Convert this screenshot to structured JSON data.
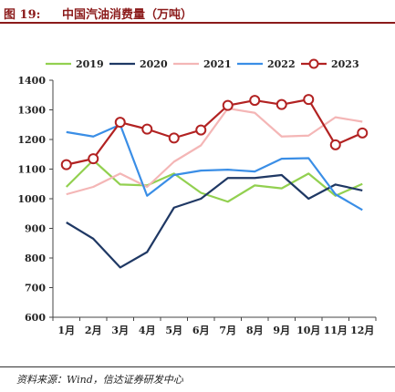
{
  "header": {
    "figure_label": "图 19:",
    "title": "中国汽油消费量（万吨）"
  },
  "source": {
    "text": "资料来源：Wind，信达证券研发中心"
  },
  "chart_data": {
    "type": "line",
    "title": "",
    "xlabel": "",
    "ylabel": "",
    "categories": [
      "1月",
      "2月",
      "3月",
      "4月",
      "5月",
      "6月",
      "7月",
      "8月",
      "9月",
      "10月",
      "11月",
      "12月"
    ],
    "ylim": [
      600,
      1400
    ],
    "yticks": [
      600,
      700,
      800,
      900,
      1000,
      1100,
      1200,
      1300,
      1400
    ],
    "grid": false,
    "legend_position": "top",
    "series": [
      {
        "name": "2019",
        "color": "#92d050",
        "marker": false,
        "values": [
          1040,
          1130,
          1048,
          1045,
          1085,
          1020,
          990,
          1045,
          1035,
          1085,
          1010,
          1050
        ]
      },
      {
        "name": "2020",
        "color": "#1f3864",
        "marker": false,
        "values": [
          920,
          865,
          768,
          820,
          970,
          1000,
          1070,
          1070,
          1080,
          1000,
          1048,
          1028
        ]
      },
      {
        "name": "2021",
        "color": "#f4b6b6",
        "marker": false,
        "values": [
          1015,
          1040,
          1085,
          1040,
          1125,
          1180,
          1305,
          1290,
          1210,
          1213,
          1275,
          1260
        ]
      },
      {
        "name": "2022",
        "color": "#3a8ee6",
        "marker": false,
        "values": [
          1225,
          1210,
          1250,
          1010,
          1080,
          1095,
          1098,
          1092,
          1135,
          1137,
          1015,
          962
        ]
      },
      {
        "name": "2023",
        "color": "#b22222",
        "marker": true,
        "values": [
          1115,
          1135,
          1258,
          1235,
          1205,
          1232,
          1315,
          1332,
          1318,
          1335,
          1182,
          1222
        ]
      }
    ]
  }
}
